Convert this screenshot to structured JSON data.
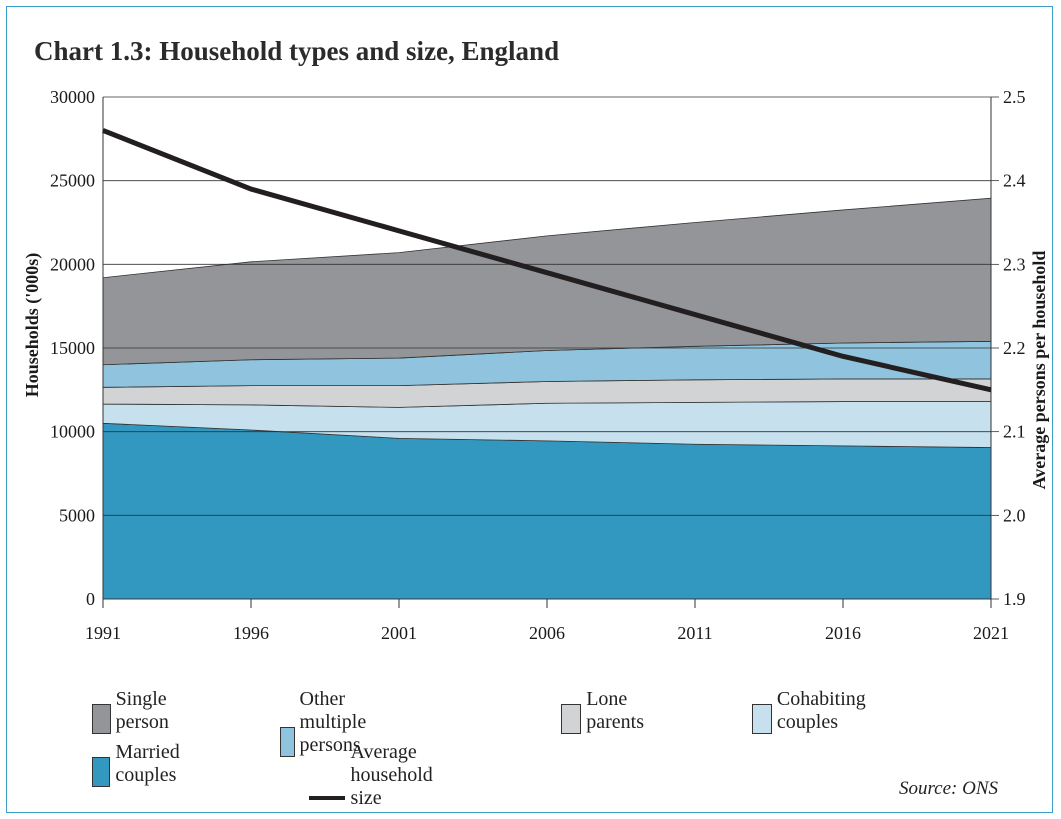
{
  "title": "Chart 1.3: Household types and size, England",
  "source": "Source: ONS",
  "colors": {
    "single_person": "#939598",
    "other_multiple": "#8fc3de",
    "lone_parents": "#d1d3d4",
    "cohabiting": "#c6e0ee",
    "married": "#3398bf",
    "avg_line": "#231f20",
    "frame": "#3aa0c4"
  },
  "chart_data": {
    "type": "area",
    "title": "Chart 1.3: Household types and size, England",
    "x": [
      "1991",
      "1996",
      "2001",
      "2006",
      "2011",
      "2016",
      "2021"
    ],
    "ylabel": "Households ('000s)",
    "y2label": "Average persons per household",
    "ylim": [
      0,
      30000
    ],
    "yticks": [
      "0",
      "5000",
      "10000",
      "15000",
      "20000",
      "25000",
      "30000"
    ],
    "y2lim": [
      1.9,
      2.5
    ],
    "y2ticks": [
      "1.9",
      "2.0",
      "2.1",
      "2.2",
      "2.3",
      "2.4",
      "2.5"
    ],
    "stack_order_bottom_to_top": [
      "Married couples",
      "Cohabiting couples",
      "Lone parents",
      "Other multiple persons",
      "Single person"
    ],
    "series": [
      {
        "name": "Married couples",
        "values": [
          10500,
          10100,
          9600,
          9450,
          9250,
          9150,
          9050
        ]
      },
      {
        "name": "Cohabiting couples",
        "values": [
          1150,
          1500,
          1850,
          2250,
          2500,
          2650,
          2750
        ]
      },
      {
        "name": "Lone parents",
        "values": [
          1000,
          1150,
          1300,
          1300,
          1350,
          1350,
          1350
        ]
      },
      {
        "name": "Other multiple persons",
        "values": [
          1350,
          1550,
          1650,
          1850,
          2000,
          2150,
          2250
        ]
      },
      {
        "name": "Single person",
        "values": [
          5200,
          5850,
          6300,
          6850,
          7400,
          7950,
          8550
        ]
      },
      {
        "name": "Average household size",
        "axis": "right",
        "type": "line",
        "values": [
          2.46,
          2.39,
          2.34,
          2.29,
          2.24,
          2.19,
          2.15
        ]
      }
    ],
    "legend": "bottom",
    "grid": false
  },
  "legend_rows": [
    [
      {
        "key": "single_person",
        "label": "Single person",
        "kind": "box"
      },
      {
        "key": "other_multiple",
        "label": "Other multiple persons",
        "kind": "box"
      },
      {
        "key": "lone_parents",
        "label": "Lone parents",
        "kind": "box"
      },
      {
        "key": "cohabiting",
        "label": "Cohabiting couples",
        "kind": "box"
      }
    ],
    [
      {
        "key": "married",
        "label": "Married couples",
        "kind": "box"
      },
      {
        "key": "avg_line",
        "label": "Average household size",
        "kind": "line"
      }
    ]
  ]
}
